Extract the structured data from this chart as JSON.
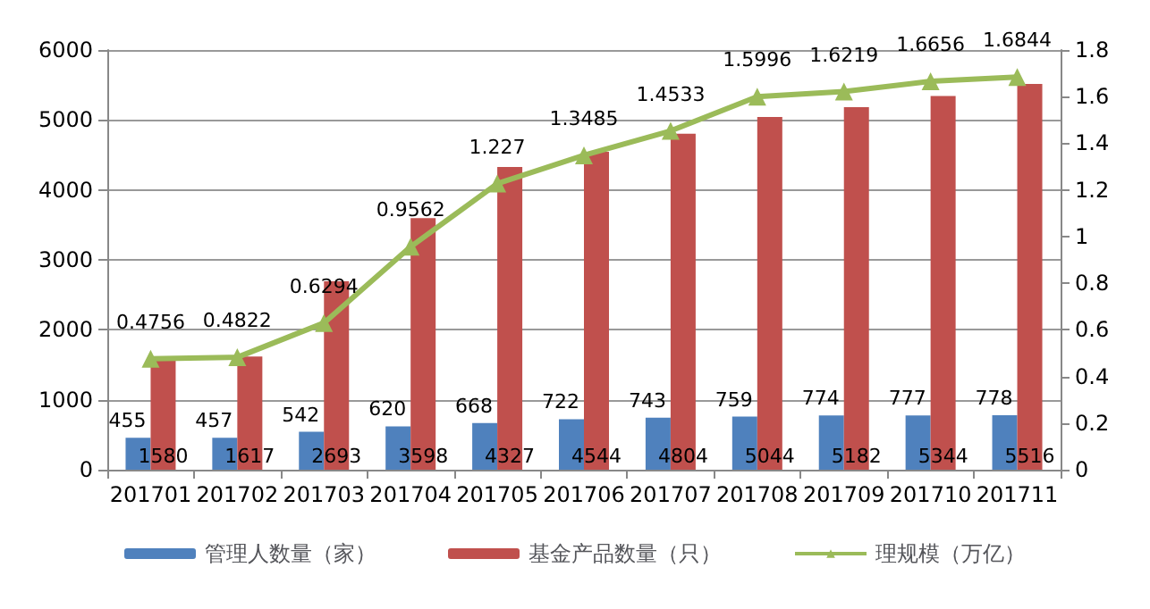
{
  "chart_data": {
    "type": "bar",
    "categories": [
      "201701",
      "201702",
      "201703",
      "201704",
      "201705",
      "201706",
      "201707",
      "201708",
      "201709",
      "201710",
      "201711"
    ],
    "series": [
      {
        "name": "管理人数量（家）",
        "color": "#4f81bd",
        "values": [
          455,
          457,
          542,
          620,
          668,
          722,
          743,
          759,
          774,
          777,
          778
        ]
      },
      {
        "name": "基金产品数量（只）",
        "color": "#c0504d",
        "values": [
          1580,
          1617,
          2693,
          3598,
          4327,
          4544,
          4804,
          5044,
          5182,
          5344,
          5516
        ]
      },
      {
        "name": "理规模（万亿）",
        "type": "line",
        "axis": "y2",
        "color": "#9bbb59",
        "marker": "triangle",
        "values": [
          0.4756,
          0.4822,
          0.6294,
          0.9562,
          1.227,
          1.3485,
          1.4533,
          1.5996,
          1.6219,
          1.6656,
          1.6844
        ]
      }
    ],
    "ylim": [
      0,
      6000
    ],
    "yticks": [
      0,
      1000,
      2000,
      3000,
      4000,
      5000,
      6000
    ],
    "y2lim": [
      0,
      1.8
    ],
    "y2ticks": [
      0,
      0.2,
      0.4,
      0.6,
      0.8,
      1,
      1.2,
      1.4,
      1.6,
      1.8
    ],
    "grid": "y",
    "legend": "bottom",
    "data_labels": true
  }
}
